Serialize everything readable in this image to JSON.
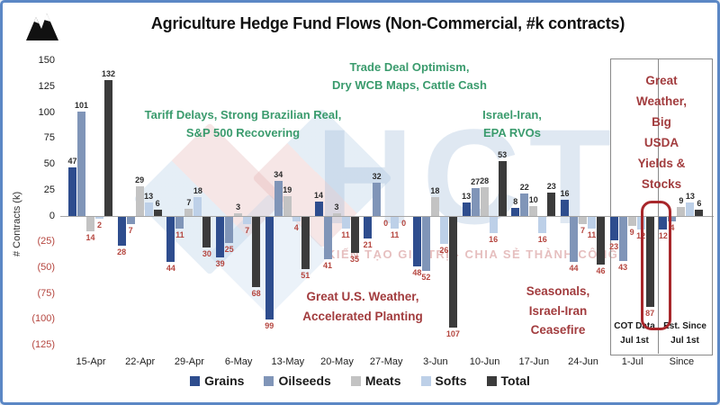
{
  "window": {
    "title": "Agriculture Hedge Fund Flows (Non-Commercial, #k contracts)",
    "logo": "mountain-logo"
  },
  "chart_data": {
    "type": "bar",
    "title": "Agriculture Hedge Fund Flows (Non-Commercial, #k contracts)",
    "xlabel": "",
    "ylabel": "# Contracts (k)",
    "ylim": [
      -125,
      150
    ],
    "grid": false,
    "legend_position": "bottom",
    "ytick_values": [
      150,
      125,
      100,
      75,
      50,
      25,
      0,
      -25,
      -50,
      -75,
      -100,
      -125
    ],
    "ytick_labels": [
      "150",
      "125",
      "100",
      "75",
      "50",
      "25",
      "0",
      "(25)",
      "(50)",
      "(75)",
      "(100)",
      "(125)"
    ],
    "categories": [
      "15-Apr",
      "22-Apr",
      "29-Apr",
      "6-May",
      "13-May",
      "20-May",
      "27-May",
      "3-Jun",
      "10-Jun",
      "17-Jun",
      "24-Jun",
      "1-Jul",
      "Since"
    ],
    "series": [
      {
        "name": "Grains",
        "color": "#2e4d8e",
        "values": [
          47,
          -28,
          -44,
          -39,
          -99,
          14,
          -21,
          -48,
          13,
          8,
          16,
          -23,
          -12
        ]
      },
      {
        "name": "Oilseeds",
        "color": "#8095b8",
        "values": [
          101,
          -7,
          -11,
          -25,
          34,
          -41,
          32,
          -52,
          27,
          22,
          -44,
          -43,
          -4
        ]
      },
      {
        "name": "Meats",
        "color": "#c3c3c3",
        "values": [
          -14,
          29,
          7,
          3,
          19,
          3,
          0,
          18,
          28,
          10,
          -7,
          -9,
          9
        ]
      },
      {
        "name": "Softs",
        "color": "#bdd0e8",
        "values": [
          -2,
          13,
          18,
          -7,
          -4,
          -11,
          -11,
          -26,
          -16,
          -16,
          -11,
          -12,
          13
        ]
      },
      {
        "name": "Total",
        "color": "#3b3b3b",
        "values": [
          132,
          6,
          -30,
          -68,
          -51,
          -35,
          0,
          -107,
          53,
          23,
          -46,
          -87,
          6
        ]
      }
    ]
  },
  "annotations": {
    "trade_deal": "Trade Deal Optimism,\nDry WCB Maps, Cattle Cash",
    "tariff": "Tariff Delays, Strong Brazilian Real,\nS&P 500 Recovering",
    "israel_iran": "Israel-Iran,\nEPA RVOs",
    "us_weather": "Great U.S. Weather,\nAccelerated Planting",
    "seasonals": "Seasonals,\nIsrael-Iran\nCeasefire",
    "great_weather": "Great\nWeather,\nBig USDA\nYields &\nStocks"
  },
  "callout": {
    "left_label": "COT Data\nJul 1st",
    "right_label": "Est. Since\nJul 1st"
  },
  "watermark": {
    "text": "HCT",
    "tagline": "KIẾN TẠO GIÁ TRỊ - CHIA SẺ THÀNH CÔNG"
  },
  "colors": {
    "negative_label": "#b5463f",
    "positive_label": "#2b2b2b",
    "annotation_green": "#3a9b6d",
    "annotation_red": "#a23c3e",
    "highlight_box": "#a8272b",
    "frame_border": "#5b87c5"
  }
}
